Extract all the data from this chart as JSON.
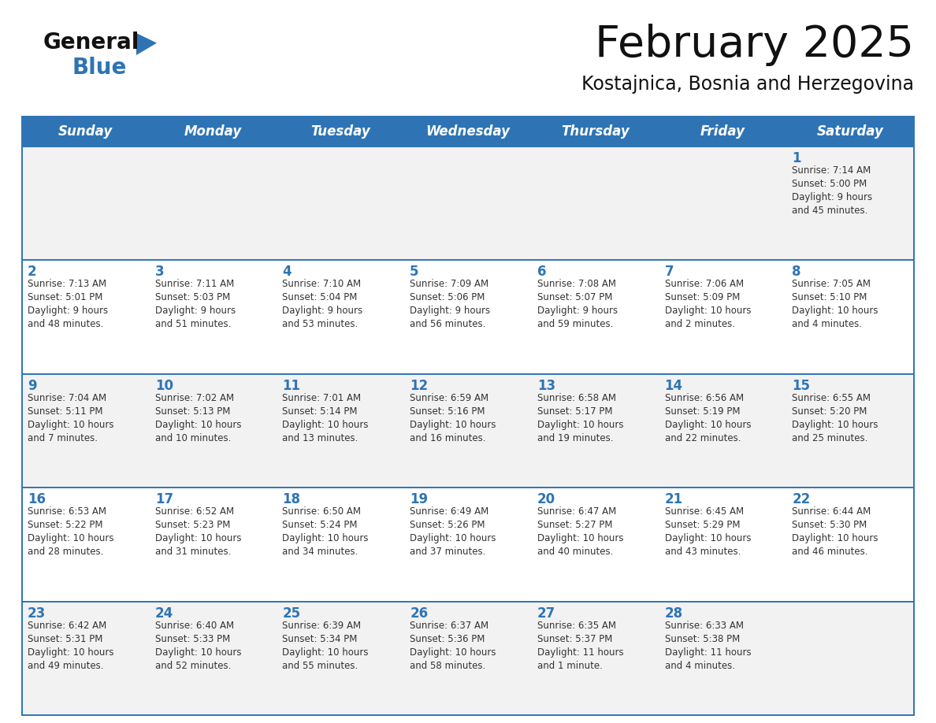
{
  "title": "February 2025",
  "subtitle": "Kostajnica, Bosnia and Herzegovina",
  "header_bg": "#2E74B5",
  "header_text_color": "#FFFFFF",
  "row_bg_even": "#F2F2F2",
  "row_bg_odd": "#FFFFFF",
  "cell_border_color": "#2E74B5",
  "day_headers": [
    "Sunday",
    "Monday",
    "Tuesday",
    "Wednesday",
    "Thursday",
    "Friday",
    "Saturday"
  ],
  "days": [
    {
      "day": 1,
      "col": 6,
      "row": 0,
      "sunrise": "7:14 AM",
      "sunset": "5:00 PM",
      "daylight": "9 hours and 45 minutes."
    },
    {
      "day": 2,
      "col": 0,
      "row": 1,
      "sunrise": "7:13 AM",
      "sunset": "5:01 PM",
      "daylight": "9 hours and 48 minutes."
    },
    {
      "day": 3,
      "col": 1,
      "row": 1,
      "sunrise": "7:11 AM",
      "sunset": "5:03 PM",
      "daylight": "9 hours and 51 minutes."
    },
    {
      "day": 4,
      "col": 2,
      "row": 1,
      "sunrise": "7:10 AM",
      "sunset": "5:04 PM",
      "daylight": "9 hours and 53 minutes."
    },
    {
      "day": 5,
      "col": 3,
      "row": 1,
      "sunrise": "7:09 AM",
      "sunset": "5:06 PM",
      "daylight": "9 hours and 56 minutes."
    },
    {
      "day": 6,
      "col": 4,
      "row": 1,
      "sunrise": "7:08 AM",
      "sunset": "5:07 PM",
      "daylight": "9 hours and 59 minutes."
    },
    {
      "day": 7,
      "col": 5,
      "row": 1,
      "sunrise": "7:06 AM",
      "sunset": "5:09 PM",
      "daylight": "10 hours and 2 minutes."
    },
    {
      "day": 8,
      "col": 6,
      "row": 1,
      "sunrise": "7:05 AM",
      "sunset": "5:10 PM",
      "daylight": "10 hours and 4 minutes."
    },
    {
      "day": 9,
      "col": 0,
      "row": 2,
      "sunrise": "7:04 AM",
      "sunset": "5:11 PM",
      "daylight": "10 hours and 7 minutes."
    },
    {
      "day": 10,
      "col": 1,
      "row": 2,
      "sunrise": "7:02 AM",
      "sunset": "5:13 PM",
      "daylight": "10 hours and 10 minutes."
    },
    {
      "day": 11,
      "col": 2,
      "row": 2,
      "sunrise": "7:01 AM",
      "sunset": "5:14 PM",
      "daylight": "10 hours and 13 minutes."
    },
    {
      "day": 12,
      "col": 3,
      "row": 2,
      "sunrise": "6:59 AM",
      "sunset": "5:16 PM",
      "daylight": "10 hours and 16 minutes."
    },
    {
      "day": 13,
      "col": 4,
      "row": 2,
      "sunrise": "6:58 AM",
      "sunset": "5:17 PM",
      "daylight": "10 hours and 19 minutes."
    },
    {
      "day": 14,
      "col": 5,
      "row": 2,
      "sunrise": "6:56 AM",
      "sunset": "5:19 PM",
      "daylight": "10 hours and 22 minutes."
    },
    {
      "day": 15,
      "col": 6,
      "row": 2,
      "sunrise": "6:55 AM",
      "sunset": "5:20 PM",
      "daylight": "10 hours and 25 minutes."
    },
    {
      "day": 16,
      "col": 0,
      "row": 3,
      "sunrise": "6:53 AM",
      "sunset": "5:22 PM",
      "daylight": "10 hours and 28 minutes."
    },
    {
      "day": 17,
      "col": 1,
      "row": 3,
      "sunrise": "6:52 AM",
      "sunset": "5:23 PM",
      "daylight": "10 hours and 31 minutes."
    },
    {
      "day": 18,
      "col": 2,
      "row": 3,
      "sunrise": "6:50 AM",
      "sunset": "5:24 PM",
      "daylight": "10 hours and 34 minutes."
    },
    {
      "day": 19,
      "col": 3,
      "row": 3,
      "sunrise": "6:49 AM",
      "sunset": "5:26 PM",
      "daylight": "10 hours and 37 minutes."
    },
    {
      "day": 20,
      "col": 4,
      "row": 3,
      "sunrise": "6:47 AM",
      "sunset": "5:27 PM",
      "daylight": "10 hours and 40 minutes."
    },
    {
      "day": 21,
      "col": 5,
      "row": 3,
      "sunrise": "6:45 AM",
      "sunset": "5:29 PM",
      "daylight": "10 hours and 43 minutes."
    },
    {
      "day": 22,
      "col": 6,
      "row": 3,
      "sunrise": "6:44 AM",
      "sunset": "5:30 PM",
      "daylight": "10 hours and 46 minutes."
    },
    {
      "day": 23,
      "col": 0,
      "row": 4,
      "sunrise": "6:42 AM",
      "sunset": "5:31 PM",
      "daylight": "10 hours and 49 minutes."
    },
    {
      "day": 24,
      "col": 1,
      "row": 4,
      "sunrise": "6:40 AM",
      "sunset": "5:33 PM",
      "daylight": "10 hours and 52 minutes."
    },
    {
      "day": 25,
      "col": 2,
      "row": 4,
      "sunrise": "6:39 AM",
      "sunset": "5:34 PM",
      "daylight": "10 hours and 55 minutes."
    },
    {
      "day": 26,
      "col": 3,
      "row": 4,
      "sunrise": "6:37 AM",
      "sunset": "5:36 PM",
      "daylight": "10 hours and 58 minutes."
    },
    {
      "day": 27,
      "col": 4,
      "row": 4,
      "sunrise": "6:35 AM",
      "sunset": "5:37 PM",
      "daylight": "11 hours and 1 minute."
    },
    {
      "day": 28,
      "col": 5,
      "row": 4,
      "sunrise": "6:33 AM",
      "sunset": "5:38 PM",
      "daylight": "11 hours and 4 minutes."
    }
  ],
  "num_rows": 5,
  "num_cols": 7,
  "logo_text_general": "General",
  "logo_text_blue": "Blue",
  "logo_triangle_color": "#2E74B5",
  "logo_general_color": "#111111",
  "logo_blue_color": "#2E74B5",
  "title_color": "#111111",
  "subtitle_color": "#111111",
  "cell_text_color": "#333333",
  "cell_day_number_color": "#2E74B5"
}
